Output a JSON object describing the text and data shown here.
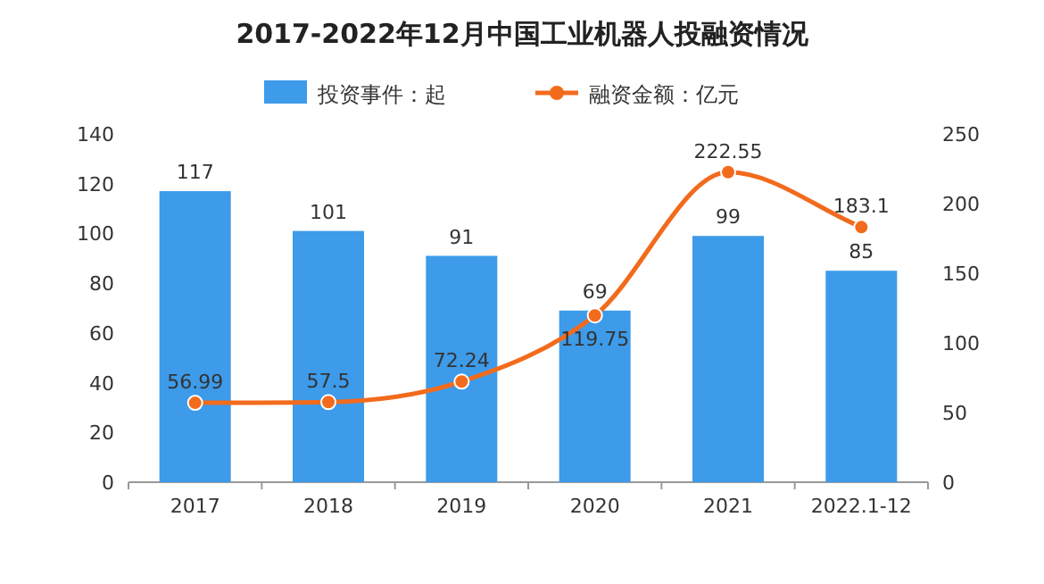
{
  "chart_data": {
    "type": "bar",
    "title": "2017-2022年12月中国工业机器人投融资情况",
    "categories": [
      "2017",
      "2018",
      "2019",
      "2020",
      "2021",
      "2022.1-12"
    ],
    "series": [
      {
        "name": "投资事件：起",
        "color": "#3d9be9",
        "values": [
          117,
          101,
          91,
          69,
          99,
          85
        ]
      },
      {
        "name": "融资金额：亿元",
        "type": "line",
        "axis": "y2",
        "color": "#f26b1d",
        "values": [
          56.99,
          57.5,
          72.24,
          119.75,
          222.55,
          183.1
        ]
      }
    ],
    "ylim": [
      0,
      140
    ],
    "yticks": [
      0,
      20,
      40,
      60,
      80,
      100,
      120,
      140
    ],
    "y2lim": [
      0,
      250
    ],
    "y2ticks": [
      0,
      50,
      100,
      150,
      200,
      250
    ],
    "legend": "top",
    "data_labels": true,
    "marker": "circle"
  }
}
